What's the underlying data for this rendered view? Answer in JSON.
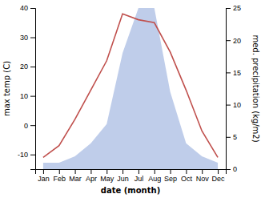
{
  "chart_data": {
    "type": "line",
    "x_label": "date (month)",
    "y_label": "max temp (C)",
    "y2_label": "med. precipitation (kg/m2)",
    "categories": [
      "Jan",
      "Feb",
      "Mar",
      "Apr",
      "May",
      "Jun",
      "Jul",
      "Aug",
      "Sep",
      "Oct",
      "Nov",
      "Dec"
    ],
    "series": [
      {
        "type": "area",
        "axis": "y2",
        "color": "#b8c8e8",
        "values": [
          1,
          1,
          2,
          4,
          7,
          18,
          25,
          25,
          12,
          4,
          2,
          1
        ]
      },
      {
        "type": "line",
        "color": "#c0504d",
        "values": [
          -11,
          -7,
          2,
          12,
          22,
          38,
          36,
          35,
          25,
          12,
          -2,
          -11
        ]
      }
    ],
    "ylim": [
      -15,
      40
    ],
    "yticks": [
      -10,
      0,
      10,
      20,
      30,
      40
    ],
    "y2lim": [
      0,
      25
    ],
    "y2ticks": [
      0,
      5,
      10,
      15,
      20,
      25
    ],
    "grid": false
  }
}
